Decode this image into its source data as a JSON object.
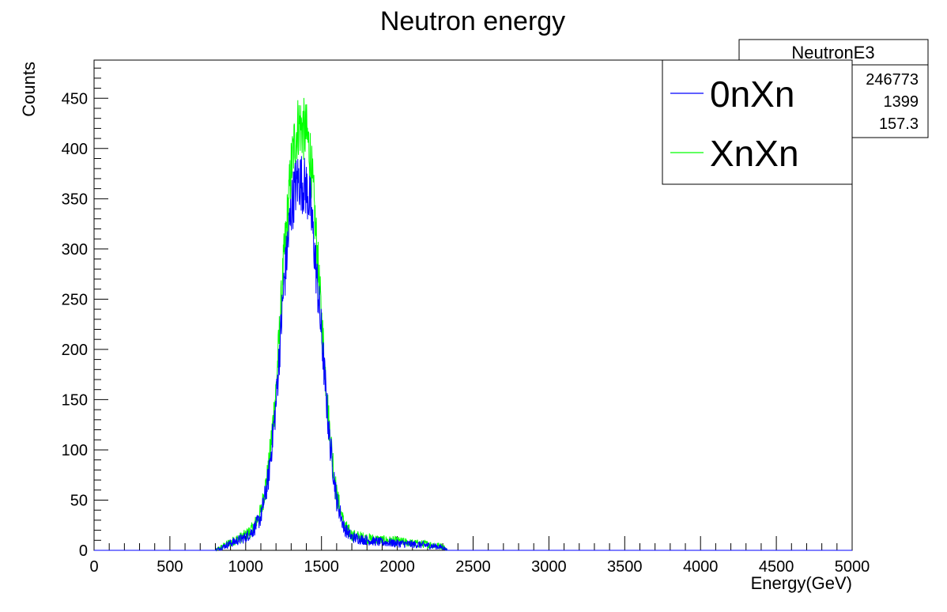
{
  "chart_data": {
    "type": "histogram",
    "title": "Neutron energy",
    "xlabel": "Energy(GeV)",
    "ylabel": "Counts",
    "xlim": [
      0,
      5000
    ],
    "ylim": [
      0,
      488
    ],
    "x_ticks": [
      "0",
      "500",
      "1000",
      "1500",
      "2000",
      "2500",
      "3000",
      "3500",
      "4000",
      "4500",
      "5000"
    ],
    "y_ticks": [
      "0",
      "50",
      "100",
      "150",
      "200",
      "250",
      "300",
      "350",
      "400",
      "450"
    ],
    "grid": false,
    "legend_placement": "top-right",
    "stats": {
      "name": "NeutronE3",
      "entries": "246773",
      "mean": "1399",
      "std": "157.3"
    },
    "series": [
      {
        "name": "XnXn",
        "color": "#00ff00",
        "x": [
          800,
          900,
          1000,
          1050,
          1100,
          1150,
          1200,
          1250,
          1300,
          1325,
          1350,
          1375,
          1400,
          1425,
          1450,
          1500,
          1550,
          1600,
          1650,
          1700,
          1800,
          1900,
          2000,
          2100,
          2200,
          2300,
          2330
        ],
        "y": [
          0,
          8,
          15,
          22,
          38,
          80,
          160,
          285,
          380,
          410,
          425,
          420,
          415,
          395,
          345,
          230,
          125,
          55,
          25,
          15,
          12,
          10,
          9,
          7,
          6,
          4,
          0
        ]
      },
      {
        "name": "0nXn",
        "color": "#0000ff",
        "x": [
          800,
          900,
          1000,
          1050,
          1100,
          1150,
          1200,
          1250,
          1300,
          1325,
          1350,
          1375,
          1400,
          1425,
          1450,
          1500,
          1550,
          1600,
          1650,
          1700,
          1800,
          1900,
          2000,
          2100,
          2200,
          2300,
          2330
        ],
        "y": [
          0,
          7,
          13,
          20,
          33,
          72,
          145,
          260,
          340,
          360,
          370,
          365,
          360,
          345,
          305,
          215,
          115,
          50,
          22,
          13,
          10,
          8,
          7,
          6,
          5,
          3,
          0
        ]
      }
    ]
  }
}
